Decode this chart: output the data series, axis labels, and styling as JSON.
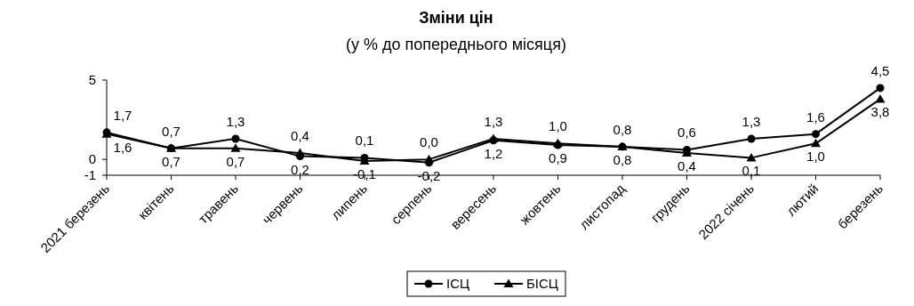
{
  "chart_data": {
    "type": "line",
    "title": "Зміни цін",
    "subtitle": "(у % до попереднього місяця)",
    "categories": [
      "2021 березень",
      "квітень",
      "травень",
      "червень",
      "липень",
      "серпень",
      "вересень",
      "жовтень",
      "листопад",
      "грудень",
      "2022 січень",
      "лютий",
      "березень"
    ],
    "series": [
      {
        "name": "ІСЦ",
        "color": "#000000",
        "marker": "circle",
        "values": [
          1.7,
          0.7,
          1.3,
          0.2,
          0.1,
          -0.2,
          1.2,
          0.9,
          0.8,
          0.6,
          1.3,
          1.6,
          4.5
        ],
        "value_labels": [
          "1,7",
          "0,7",
          "1,3",
          "0,2",
          "0,1",
          "-0,2",
          "1,2",
          "0,9",
          "0,8",
          "0,6",
          "1,3",
          "1,6",
          "4,5"
        ]
      },
      {
        "name": "БІСЦ",
        "color": "#000000",
        "marker": "triangle",
        "values": [
          1.6,
          0.7,
          0.7,
          0.4,
          -0.1,
          0.0,
          1.3,
          1.0,
          0.8,
          0.4,
          0.1,
          1.0,
          3.8
        ],
        "value_labels": [
          "1,6",
          "0,7",
          "0,7",
          "0,4",
          "-0,1",
          "0,0",
          "1,3",
          "1,0",
          "0,8",
          "0,4",
          "0,1",
          "1,0",
          "3,8"
        ]
      }
    ],
    "ylim": [
      -1,
      5
    ],
    "yticks": [
      -1,
      0,
      5
    ],
    "grid": false,
    "legend": "bottom",
    "line_style": "solid"
  }
}
